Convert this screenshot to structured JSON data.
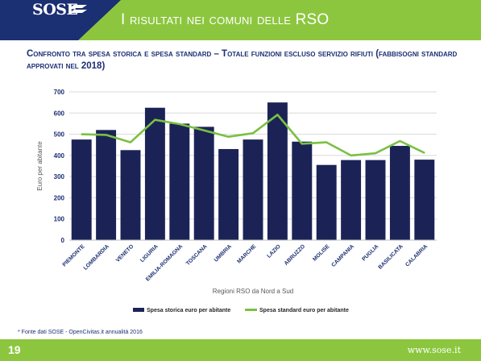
{
  "header": {
    "logo": "SOSE",
    "title": "I risultati nei comuni delle RSO"
  },
  "subtitle": "Confronto tra spesa storica e spesa standard – Totale funzioni escluso servizio rifiuti (fabbisogni standard approvati nel 2018)",
  "chart_data": {
    "type": "bar",
    "categories": [
      "PIEMONTE",
      "LOMBARDIA",
      "VENETO",
      "LIGURIA",
      "EMILIA-ROMAGNA",
      "TOSCANA",
      "UMBRIA",
      "MARCHE",
      "LAZIO",
      "ABRUZZO",
      "MOLISE",
      "CAMPANIA",
      "PUGLIA",
      "BASILICATA",
      "CALABRIA"
    ],
    "series": [
      {
        "name": "Spesa storica euro per abitante",
        "type": "bar",
        "color": "#1b2356",
        "values": [
          475,
          520,
          425,
          625,
          550,
          535,
          430,
          475,
          650,
          465,
          355,
          378,
          378,
          445,
          380
        ]
      },
      {
        "name": "Spesa standard euro per abitante",
        "type": "line",
        "color": "#7ac143",
        "values": [
          500,
          497,
          462,
          568,
          548,
          518,
          488,
          505,
          592,
          455,
          462,
          400,
          410,
          468,
          412
        ]
      }
    ],
    "yticks": [
      0,
      100,
      200,
      300,
      400,
      500,
      600,
      700
    ],
    "ylim": [
      0,
      700
    ],
    "ylabel": "Euro per abitante",
    "xlabel": "Regioni RSO da Nord a Sud",
    "grid": true,
    "legend": "bottom"
  },
  "footnote": "* Fonte dati SOSE - OpenCivitas.it annualità 2016",
  "footer": {
    "page": "19",
    "site": "www.sose.it"
  },
  "colors": {
    "accent": "#8cc63f",
    "navy": "#1b2f73",
    "bar": "#1b2356",
    "line": "#7ac143"
  }
}
